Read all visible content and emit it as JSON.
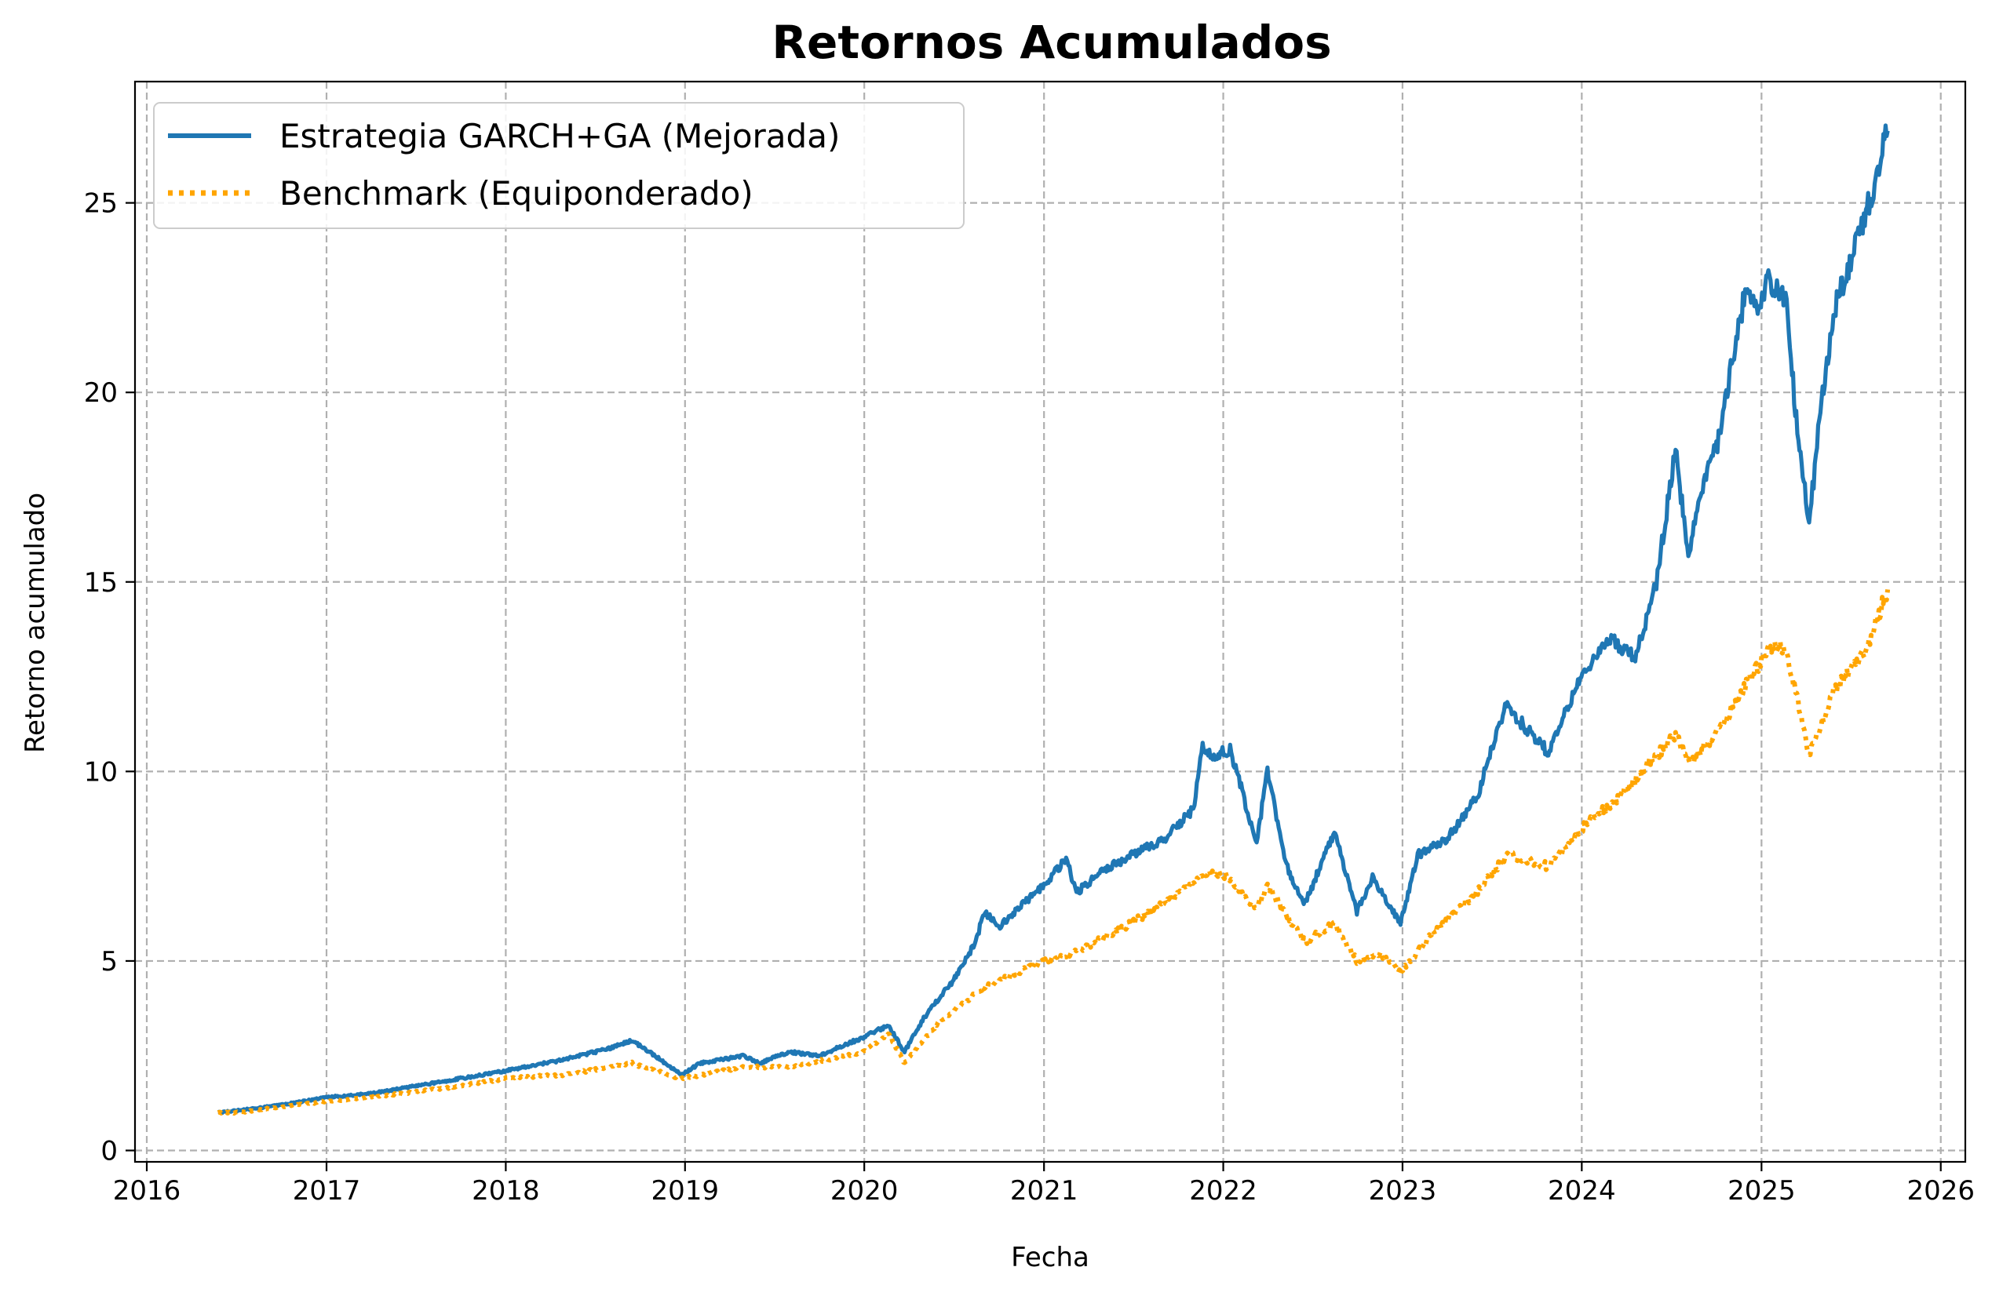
{
  "chart_data": {
    "type": "line",
    "title": "Retornos Acumulados",
    "xlabel": "Fecha",
    "ylabel": "Retorno acumulado",
    "xlim": [
      "2015-12-08",
      "2026-02-20"
    ],
    "ylim": [
      -0.3,
      28.2
    ],
    "x_ticks": [
      "2016",
      "2017",
      "2018",
      "2019",
      "2020",
      "2021",
      "2022",
      "2023",
      "2024",
      "2025",
      "2026"
    ],
    "y_ticks": [
      0,
      5,
      10,
      15,
      20,
      25
    ],
    "grid": true,
    "legend_position": "top-left",
    "series": [
      {
        "name": "Estrategia GARCH+GA (Mejorada)",
        "color": "#1f77b4",
        "style": "solid",
        "points": [
          [
            "2016-05-25",
            1.0
          ],
          [
            "2016-07-01",
            1.05
          ],
          [
            "2016-10-01",
            1.2
          ],
          [
            "2017-01-01",
            1.4
          ],
          [
            "2017-04-01",
            1.5
          ],
          [
            "2017-07-01",
            1.7
          ],
          [
            "2017-10-01",
            1.9
          ],
          [
            "2018-01-01",
            2.1
          ],
          [
            "2018-02-08",
            2.2
          ],
          [
            "2018-05-01",
            2.4
          ],
          [
            "2018-08-01",
            2.7
          ],
          [
            "2018-09-15",
            2.9
          ],
          [
            "2018-11-01",
            2.5
          ],
          [
            "2018-12-24",
            2.0
          ],
          [
            "2019-02-01",
            2.3
          ],
          [
            "2019-05-01",
            2.5
          ],
          [
            "2019-06-01",
            2.3
          ],
          [
            "2019-08-01",
            2.6
          ],
          [
            "2019-10-01",
            2.5
          ],
          [
            "2020-01-01",
            3.0
          ],
          [
            "2020-02-19",
            3.3
          ],
          [
            "2020-03-23",
            2.6
          ],
          [
            "2020-05-01",
            3.5
          ],
          [
            "2020-07-01",
            4.5
          ],
          [
            "2020-08-15",
            5.5
          ],
          [
            "2020-09-01",
            6.3
          ],
          [
            "2020-10-01",
            5.9
          ],
          [
            "2021-01-01",
            7.0
          ],
          [
            "2021-02-15",
            7.7
          ],
          [
            "2021-03-08",
            6.8
          ],
          [
            "2021-05-01",
            7.4
          ],
          [
            "2021-07-01",
            7.8
          ],
          [
            "2021-09-01",
            8.2
          ],
          [
            "2021-11-01",
            9.0
          ],
          [
            "2021-11-20",
            10.7
          ],
          [
            "2021-12-15",
            10.4
          ],
          [
            "2022-01-15",
            10.6
          ],
          [
            "2022-03-10",
            8.1
          ],
          [
            "2022-04-01",
            10.0
          ],
          [
            "2022-05-10",
            7.5
          ],
          [
            "2022-06-16",
            6.5
          ],
          [
            "2022-08-15",
            8.4
          ],
          [
            "2022-09-30",
            6.3
          ],
          [
            "2022-11-01",
            7.2
          ],
          [
            "2022-12-28",
            6.0
          ],
          [
            "2023-02-01",
            7.8
          ],
          [
            "2023-04-01",
            8.2
          ],
          [
            "2023-06-01",
            9.3
          ],
          [
            "2023-07-31",
            11.8
          ],
          [
            "2023-08-30",
            11.3
          ],
          [
            "2023-10-25",
            10.5
          ],
          [
            "2023-12-31",
            12.5
          ],
          [
            "2024-03-01",
            13.5
          ],
          [
            "2024-04-19",
            13.0
          ],
          [
            "2024-06-01",
            15.0
          ],
          [
            "2024-07-10",
            18.5
          ],
          [
            "2024-08-05",
            15.6
          ],
          [
            "2024-09-01",
            17.5
          ],
          [
            "2024-10-01",
            18.5
          ],
          [
            "2024-12-01",
            22.8
          ],
          [
            "2024-12-20",
            22.2
          ],
          [
            "2025-01-15",
            23.0
          ],
          [
            "2025-02-19",
            22.5
          ],
          [
            "2025-03-15",
            19.0
          ],
          [
            "2025-04-08",
            16.5
          ],
          [
            "2025-05-01",
            19.5
          ],
          [
            "2025-06-01",
            22.3
          ],
          [
            "2025-07-15",
            24.0
          ],
          [
            "2025-08-15",
            25.3
          ],
          [
            "2025-09-15",
            26.9
          ]
        ]
      },
      {
        "name": "Benchmark (Equiponderado)",
        "color": "#ffa500",
        "style": "dotted",
        "points": [
          [
            "2016-05-25",
            1.0
          ],
          [
            "2016-07-01",
            1.0
          ],
          [
            "2016-10-01",
            1.15
          ],
          [
            "2017-01-01",
            1.3
          ],
          [
            "2017-04-01",
            1.4
          ],
          [
            "2017-07-01",
            1.55
          ],
          [
            "2017-10-01",
            1.7
          ],
          [
            "2018-01-01",
            1.9
          ],
          [
            "2018-05-01",
            2.0
          ],
          [
            "2018-09-15",
            2.3
          ],
          [
            "2018-12-24",
            1.9
          ],
          [
            "2019-05-01",
            2.2
          ],
          [
            "2019-08-01",
            2.2
          ],
          [
            "2020-01-01",
            2.6
          ],
          [
            "2020-02-19",
            3.1
          ],
          [
            "2020-03-23",
            2.3
          ],
          [
            "2020-06-01",
            3.4
          ],
          [
            "2020-09-01",
            4.3
          ],
          [
            "2021-01-01",
            5.0
          ],
          [
            "2021-03-01",
            5.2
          ],
          [
            "2021-06-01",
            5.8
          ],
          [
            "2021-09-01",
            6.5
          ],
          [
            "2021-12-01",
            7.3
          ],
          [
            "2022-01-01",
            7.3
          ],
          [
            "2022-03-10",
            6.4
          ],
          [
            "2022-04-01",
            7.0
          ],
          [
            "2022-06-16",
            5.5
          ],
          [
            "2022-08-15",
            6.0
          ],
          [
            "2022-09-30",
            5.0
          ],
          [
            "2022-11-15",
            5.2
          ],
          [
            "2022-12-28",
            4.7
          ],
          [
            "2023-03-01",
            5.7
          ],
          [
            "2023-06-01",
            6.8
          ],
          [
            "2023-07-31",
            7.8
          ],
          [
            "2023-10-25",
            7.5
          ],
          [
            "2024-01-01",
            8.5
          ],
          [
            "2024-04-01",
            9.5
          ],
          [
            "2024-07-10",
            11.0
          ],
          [
            "2024-08-05",
            10.2
          ],
          [
            "2024-10-01",
            11.0
          ],
          [
            "2024-12-01",
            12.3
          ],
          [
            "2025-01-15",
            13.2
          ],
          [
            "2025-02-19",
            13.3
          ],
          [
            "2025-04-08",
            10.5
          ],
          [
            "2025-06-01",
            12.2
          ],
          [
            "2025-08-01",
            13.2
          ],
          [
            "2025-09-15",
            14.8
          ]
        ]
      }
    ]
  }
}
